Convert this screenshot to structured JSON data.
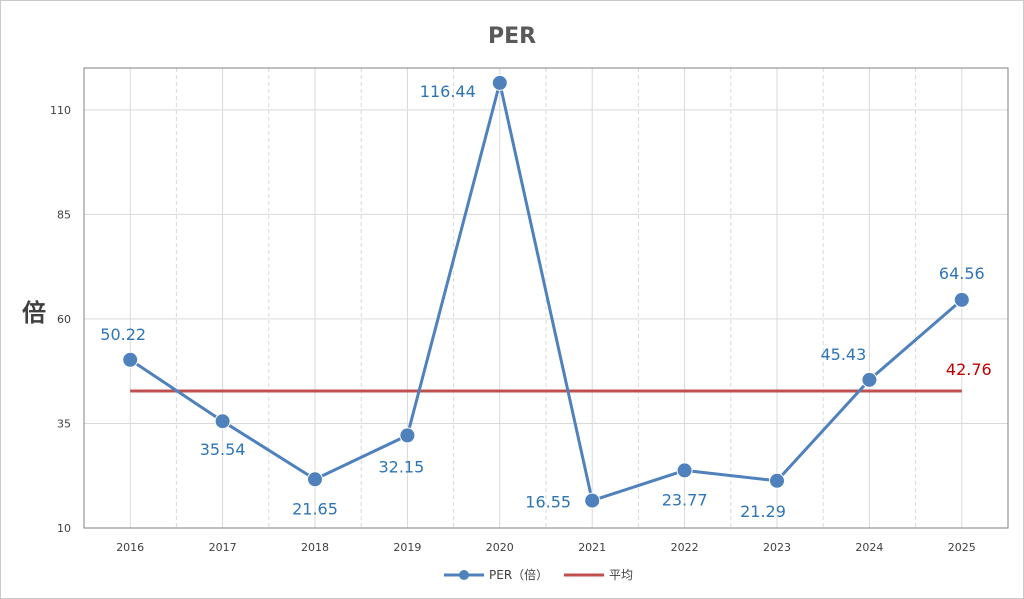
{
  "chart_data": {
    "type": "line",
    "title": "PER",
    "ylabel": "倍",
    "xlabel": "",
    "categories": [
      "2016",
      "2017",
      "2018",
      "2019",
      "2020",
      "2021",
      "2022",
      "2023",
      "2024",
      "2025"
    ],
    "series": [
      {
        "name": "PER（倍）",
        "values": [
          50.22,
          35.54,
          21.65,
          32.15,
          116.44,
          16.55,
          23.77,
          21.29,
          45.43,
          64.56
        ],
        "data_labels": [
          "50.22",
          "35.54",
          "21.65",
          "32.15",
          "116.44",
          "16.55",
          "23.77",
          "21.29",
          "45.43",
          "64.56"
        ],
        "color": "#4f81bd"
      },
      {
        "name": "平均",
        "value": 42.76,
        "data_label": "42.76",
        "color": "#c0504d"
      }
    ],
    "ylim": [
      10,
      120
    ],
    "yticks": [
      "10",
      "35",
      "60",
      "85",
      "110"
    ],
    "grid": true,
    "legend": "bottom"
  }
}
